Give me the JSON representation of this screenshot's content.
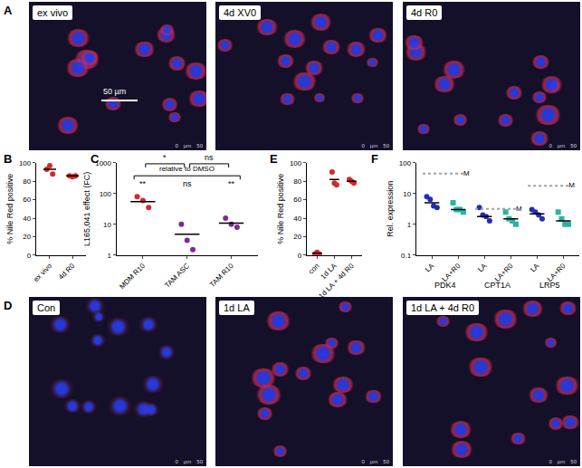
{
  "image_panels": [
    {
      "panel": "A",
      "images": [
        {
          "label": "ex vivo",
          "scale_bar": "50 µm"
        },
        {
          "label": "4d XV0"
        },
        {
          "label": "4d R0"
        }
      ]
    },
    {
      "panel": "D",
      "images": [
        {
          "label": "Con"
        },
        {
          "label": "1d LA"
        },
        {
          "label": "1d LA + 4d R0"
        }
      ]
    }
  ],
  "scale_ticks": [
    "0",
    "µm",
    "50"
  ],
  "chart_data": [
    {
      "panel": "B",
      "type": "dot",
      "y_label": "% Nile Red positive",
      "categories": [
        "ex vivo",
        "4d R0"
      ],
      "values": [
        [
          93,
          97,
          88
        ],
        [
          86,
          85,
          86
        ]
      ],
      "means": [
        93,
        86
      ],
      "color": "#d62728",
      "marker": "circle",
      "ylim": [
        0,
        100
      ],
      "yticks": [
        0,
        20,
        40,
        60,
        80,
        100
      ]
    },
    {
      "panel": "C",
      "type": "dot",
      "log": "y",
      "y_label": "L165,041 effect (FC)",
      "categories": [
        "MDM R10",
        "TAM ASC",
        "TAM R10"
      ],
      "values": [
        [
          80,
          60,
          35
        ],
        [
          10,
          3,
          1.5
        ],
        [
          16,
          10,
          8
        ]
      ],
      "means": [
        55,
        4.8,
        11
      ],
      "colors": [
        "#d62728",
        "#7b2d8e",
        "#7b2d8e"
      ],
      "marker": "circle",
      "ylim": [
        1,
        1000
      ],
      "yticks": [
        1,
        10,
        100,
        1000
      ],
      "comparisons": [
        {
          "categories": [
            0,
            1
          ],
          "label": "*"
        },
        {
          "categories": [
            1,
            2
          ],
          "label": "ns"
        }
      ],
      "control": {
        "label": "relative to DMSO",
        "marks": [
          "**",
          "ns",
          "**"
        ]
      }
    },
    {
      "panel": "E",
      "type": "dot",
      "y_label": "% Nile Red positive",
      "categories": [
        "con",
        "1d LA",
        "1d LA + 4d R0"
      ],
      "values": [
        [
          1,
          3,
          1
        ],
        [
          90,
          78,
          76
        ],
        [
          82,
          80,
          78
        ]
      ],
      "means": [
        2,
        82,
        80
      ],
      "color": "#d62728",
      "marker": "circle",
      "ylim": [
        0,
        100
      ],
      "yticks": [
        0,
        20,
        40,
        60,
        80,
        100
      ]
    },
    {
      "panel": "F",
      "type": "dot",
      "log": "y",
      "y_label": "Rel. expression",
      "groups": [
        "PDK4",
        "CPT1A",
        "LRP5"
      ],
      "series": [
        {
          "name": "LA",
          "color": "#1f2fb5",
          "marker": "circle",
          "values": [
            [
              8,
              6.5,
              4,
              3.5
            ],
            [
              3.5,
              2,
              1.8,
              1.3
            ],
            [
              3,
              2.5,
              2,
              1.5
            ]
          ],
          "means": [
            5,
            1.8,
            2.2
          ]
        },
        {
          "name": "LA+R0",
          "color": "#2ab3a3",
          "marker": "square",
          "values": [
            [
              5,
              3,
              3,
              2.5
            ],
            [
              2.5,
              1.5,
              1.3,
              1
            ],
            [
              2.5,
              1.5,
              1,
              1
            ]
          ],
          "means": [
            3,
            1.5,
            1.3
          ]
        }
      ],
      "reference": {
        "label": "M",
        "values": [
          45,
          3.2,
          18
        ],
        "color": "#a0a0a0",
        "line_style": "dot"
      },
      "ylim": [
        0.1,
        100
      ],
      "yticks": [
        0.1,
        1,
        10,
        100
      ]
    }
  ]
}
